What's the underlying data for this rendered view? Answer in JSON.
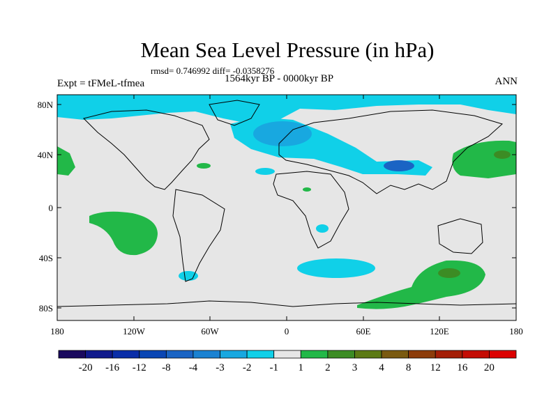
{
  "title": "Mean Sea Level Pressure (in hPa)",
  "stats": "rmsd= 0.746992 diff= -0.0358276",
  "experiment": "Expt = tFMeL-tfmea",
  "period": "1564kyr BP - 0000kyr BP",
  "season": "ANN",
  "axes": {
    "lat_labels": [
      "80N",
      "40N",
      "0",
      "40S",
      "80S"
    ],
    "lon_labels": [
      "180",
      "120W",
      "60W",
      "0",
      "60E",
      "120E",
      "180"
    ]
  },
  "colorbar": {
    "labels": [
      "-20",
      "-16",
      "-12",
      "-8",
      "-4",
      "-3",
      "-2",
      "-1",
      "1",
      "2",
      "3",
      "4",
      "8",
      "12",
      "16",
      "20"
    ],
    "colors": [
      "#1a0a5e",
      "#101a8c",
      "#0a2ea8",
      "#0a46b4",
      "#1a64c4",
      "#1a82d2",
      "#18a8e0",
      "#10d0e8",
      "#e6e6e6",
      "#22b848",
      "#3c8c24",
      "#5c7a14",
      "#7a5a10",
      "#8c3c0a",
      "#a41e06",
      "#c40c04",
      "#dc0000"
    ]
  },
  "colors": {
    "land_outline": "#000000",
    "neutral": "#e6e6e6"
  }
}
